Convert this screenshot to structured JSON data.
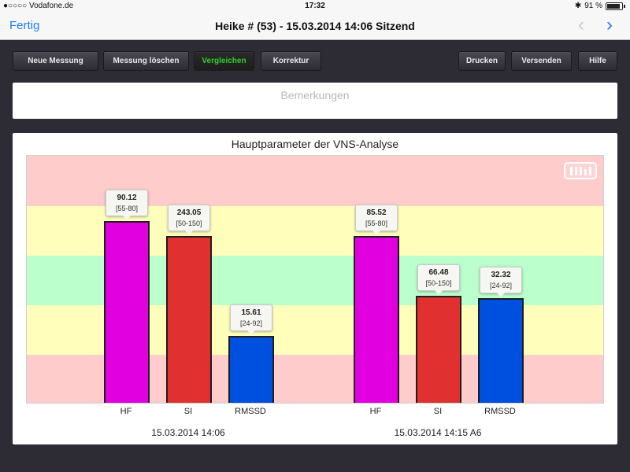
{
  "statusbar": {
    "carrier": "●○○○○ Vodafone.de",
    "time": "17:32",
    "battery": "91 %"
  },
  "navbar": {
    "done_label": "Fertig",
    "title": "Heike # (53) - 15.03.2014 14:06 Sitzend",
    "prev_icon": "chevron-left-icon",
    "next_icon": "chevron-right-icon"
  },
  "toolbar": {
    "new_measurement": "Neue Messung",
    "delete_measurement": "Messung löschen",
    "compare": "Vergleichen",
    "correction": "Korrektur",
    "print": "Drucken",
    "send": "Versenden",
    "help": "Hilfe"
  },
  "remarks": {
    "placeholder": "Bemerkungen"
  },
  "colors": {
    "hf": "#e000e0",
    "si": "#e03030",
    "rmssd": "#0050e0",
    "band_red": "#ffcccc",
    "band_yellow": "#ffffbb",
    "band_green": "#bbffcc",
    "accent": "#1a7ef5",
    "active_button_text": "#2fd02f"
  },
  "chart_data": {
    "type": "bar",
    "title": "Hauptparameter der VNS-Analyse",
    "categories": [
      "HF",
      "SI",
      "RMSSD"
    ],
    "groups": [
      {
        "label": "15.03.2014 14:06",
        "bars": [
          {
            "name": "HF",
            "value": "90.12",
            "range": "[55-80]",
            "level": 0.73
          },
          {
            "name": "SI",
            "value": "243.05",
            "range": "[50-150]",
            "level": 0.67
          },
          {
            "name": "RMSSD",
            "value": "15.61",
            "range": "[24-92]",
            "level": 0.27
          }
        ]
      },
      {
        "label": "15.03.2014 14:15 A6",
        "bars": [
          {
            "name": "HF",
            "value": "85.52",
            "range": "[55-80]",
            "level": 0.67
          },
          {
            "name": "SI",
            "value": "66.48",
            "range": "[50-150]",
            "level": 0.43
          },
          {
            "name": "RMSSD",
            "value": "32.32",
            "range": "[24-92]",
            "level": 0.42
          }
        ]
      }
    ],
    "bands": [
      "red",
      "yellow",
      "green",
      "yellow",
      "red"
    ]
  }
}
